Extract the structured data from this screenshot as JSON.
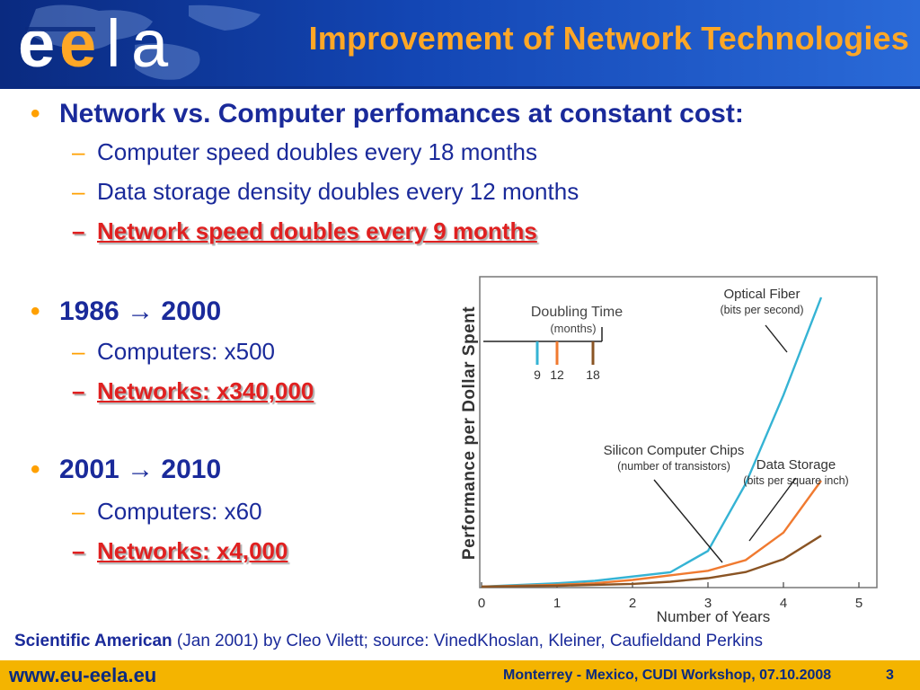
{
  "header": {
    "logo_text": "eela",
    "title": "Improvement of Network Technologies"
  },
  "bullets": [
    {
      "text": "Network vs. Computer perfomances at constant cost:",
      "subitems": [
        {
          "text": "Computer speed doubles every 18 months",
          "highlight": false
        },
        {
          "text": "Data storage density doubles every 12 months",
          "highlight": false
        },
        {
          "text": "Network speed doubles every 9 months",
          "highlight": true
        }
      ]
    },
    {
      "text": "1986 → 2000",
      "subitems": [
        {
          "text": "Computers: x500",
          "highlight": false
        },
        {
          "text": "Networks: x340,000",
          "highlight": true
        }
      ]
    },
    {
      "text": "2001 → 2010",
      "subitems": [
        {
          "text": "Computers: x60",
          "highlight": false
        },
        {
          "text": "Networks: x4,000",
          "highlight": true
        }
      ]
    }
  ],
  "chart_data": {
    "type": "line",
    "title": "",
    "xlabel": "Number of Years",
    "ylabel": "Performance per Dollar Spent",
    "xlim": [
      0,
      5
    ],
    "x_ticks": [
      "0",
      "1",
      "2",
      "3",
      "4",
      "5"
    ],
    "grid": false,
    "legend": {
      "title": "Doubling Time",
      "subtitle": "(months)",
      "entries": [
        "9",
        "12",
        "18"
      ],
      "placement": "top-left"
    },
    "series": [
      {
        "name": "Optical Fiber",
        "description": "(bits per second)",
        "doubling_months": 9,
        "color": "#35b3d4",
        "x": [
          0,
          1,
          1.5,
          2.5,
          3,
          3.5,
          4,
          4.5
        ],
        "y": [
          0.3,
          1.4,
          2.2,
          5.0,
          12,
          34,
          63,
          95
        ]
      },
      {
        "name": "Data Storage",
        "description": "(bits per square inch)",
        "doubling_months": 12,
        "color": "#f07a30",
        "x": [
          0,
          1,
          1.5,
          2,
          3,
          3.5,
          4,
          4.5
        ],
        "y": [
          0.3,
          0.9,
          1.4,
          2.5,
          5.5,
          9,
          18,
          35
        ]
      },
      {
        "name": "Silicon Computer Chips",
        "description": "(number of transistors)",
        "doubling_months": 18,
        "color": "#8a5424",
        "x": [
          0,
          1,
          2,
          2.5,
          3,
          3.5,
          4,
          4.5
        ],
        "y": [
          0.3,
          0.6,
          1.2,
          1.9,
          3.1,
          5.1,
          9.3,
          17
        ]
      }
    ]
  },
  "caption": {
    "source_bold": "Scientific American",
    "text": " (Jan 2001) by Cleo Vilett; source: VinedKhoslan, Kleiner, Caufieldand Perkins"
  },
  "footer": {
    "url": "www.eu-eela.eu",
    "event": "Monterrey - Mexico, CUDI Workshop, 07.10.2008",
    "page": "3"
  },
  "colors": {
    "header_blue": "#1346b4",
    "title_orange": "#ffa726",
    "text_blue": "#1a2a9a",
    "highlight_red": "#e02020",
    "footer_yellow": "#f4b400"
  }
}
